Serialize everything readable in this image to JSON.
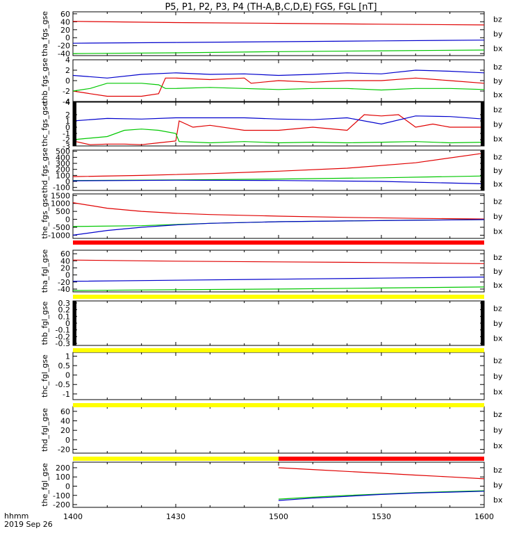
{
  "title": "P5, P1, P2, P3, P4 (TH-A,B,C,D,E) FGS, FGL [nT]",
  "time_axis": {
    "label_line1": "hhmm",
    "label_line2": "2019 Sep 26",
    "ticks": [
      "1400",
      "1430",
      "1500",
      "1530",
      "1600"
    ],
    "range_min": [
      0,
      120
    ]
  },
  "colors": {
    "bz": "#e00000",
    "by": "#00c800",
    "bx": "#0000cc",
    "yellow": "#ffff00",
    "red": "#ff0000",
    "black": "#000000"
  },
  "chart_data": [
    {
      "type": "line",
      "name": "tha_fgs_gse",
      "ylabel": "tha_fgs_gse",
      "ylim": [
        -45,
        65
      ],
      "yticks": [
        60,
        40,
        20,
        0,
        -20,
        -40
      ],
      "legend": [
        "bz",
        "by",
        "bx"
      ],
      "series": [
        {
          "name": "bz",
          "x": [
            0,
            30,
            60,
            90,
            120
          ],
          "y": [
            41,
            38,
            36,
            34,
            32
          ]
        },
        {
          "name": "by",
          "x": [
            0,
            30,
            60,
            90,
            120
          ],
          "y": [
            -40,
            -38,
            -35,
            -33,
            -31
          ]
        },
        {
          "name": "bx",
          "x": [
            0,
            30,
            60,
            90,
            120
          ],
          "y": [
            -14,
            -12,
            -10,
            -8,
            -6
          ]
        }
      ]
    },
    {
      "type": "line",
      "name": "thb_fgs_gse",
      "ylabel": "thb_fgs_gse",
      "ylim": [
        -4,
        4
      ],
      "yticks": [
        4,
        2,
        0,
        -2,
        -4
      ],
      "legend": [
        "bz",
        "by",
        "bx"
      ],
      "series": [
        {
          "name": "bz",
          "x": [
            0,
            5,
            10,
            15,
            20,
            25,
            27,
            30,
            40,
            50,
            52,
            60,
            70,
            80,
            90,
            100,
            110,
            120
          ],
          "y": [
            -2,
            -2.5,
            -3,
            -3,
            -3,
            -2.5,
            0.5,
            0.5,
            0.2,
            0.5,
            -0.5,
            0,
            -0.3,
            0,
            0,
            0.5,
            0,
            -0.5
          ]
        },
        {
          "name": "by",
          "x": [
            0,
            5,
            10,
            15,
            20,
            25,
            27,
            30,
            40,
            50,
            60,
            70,
            80,
            90,
            100,
            110,
            120
          ],
          "y": [
            -2,
            -1.5,
            -0.5,
            -0.5,
            -0.5,
            -0.8,
            -1.5,
            -1.5,
            -1.3,
            -1.5,
            -1.7,
            -1.5,
            -1.5,
            -1.8,
            -1.5,
            -1.5,
            -1.7
          ]
        },
        {
          "name": "bx",
          "x": [
            0,
            10,
            20,
            30,
            40,
            50,
            60,
            70,
            80,
            90,
            100,
            110,
            120
          ],
          "y": [
            1,
            0.5,
            1.2,
            1.5,
            1.2,
            1.3,
            1.0,
            1.2,
            1.5,
            1.3,
            2.0,
            1.8,
            1.5
          ]
        }
      ]
    },
    {
      "type": "line",
      "name": "thc_fgs_gse",
      "ylabel": "thc_fgs_gse",
      "ylim": [
        -3,
        4
      ],
      "yticks": [
        4,
        2,
        1,
        0,
        -1,
        -2,
        -3
      ],
      "legend": [
        "bz",
        "by",
        "bx"
      ],
      "series": [
        {
          "name": "bz",
          "x": [
            0,
            5,
            10,
            15,
            20,
            25,
            30,
            31,
            35,
            40,
            50,
            60,
            70,
            80,
            85,
            90,
            95,
            100,
            105,
            110,
            120
          ],
          "y": [
            -2.2,
            -2.8,
            -2.7,
            -2.7,
            -2.8,
            -2.5,
            -2.2,
            1,
            0,
            0.3,
            -0.5,
            -0.5,
            0,
            -0.5,
            2,
            1.8,
            2,
            0,
            0.5,
            0,
            0
          ]
        },
        {
          "name": "by",
          "x": [
            0,
            10,
            15,
            20,
            25,
            30,
            31,
            40,
            50,
            60,
            70,
            80,
            90,
            100,
            110,
            120
          ],
          "y": [
            -2,
            -1.5,
            -0.5,
            -0.3,
            -0.5,
            -1,
            -2.3,
            -2.5,
            -2.3,
            -2.5,
            -2.4,
            -2.5,
            -2.4,
            -2.3,
            -2.5,
            -2.4
          ]
        },
        {
          "name": "bx",
          "x": [
            0,
            10,
            20,
            30,
            40,
            50,
            60,
            70,
            80,
            90,
            100,
            110,
            120
          ],
          "y": [
            1,
            1.4,
            1.3,
            1.5,
            1.5,
            1.5,
            1.3,
            1.2,
            1.5,
            0.5,
            1.8,
            1.7,
            1.3
          ]
        }
      ]
    },
    {
      "type": "line",
      "name": "thd_fgs_gse",
      "ylabel": "thd_fgs_gse",
      "ylim": [
        -150,
        520
      ],
      "yticks": [
        500,
        400,
        300,
        200,
        100,
        0,
        -100
      ],
      "legend": [
        "bz",
        "by",
        "bx"
      ],
      "series": [
        {
          "name": "bz",
          "x": [
            0,
            20,
            40,
            60,
            80,
            100,
            120
          ],
          "y": [
            80,
            100,
            130,
            170,
            220,
            310,
            470
          ]
        },
        {
          "name": "by",
          "x": [
            0,
            30,
            60,
            90,
            120
          ],
          "y": [
            15,
            25,
            40,
            60,
            90
          ]
        },
        {
          "name": "bx",
          "x": [
            0,
            30,
            60,
            90,
            120
          ],
          "y": [
            10,
            20,
            15,
            0,
            -40
          ]
        }
      ]
    },
    {
      "type": "line",
      "name": "the_fgs_gse",
      "ylabel": "the_fgs_gse",
      "ylim": [
        -1200,
        1600
      ],
      "yticks": [
        1500,
        1000,
        500,
        0,
        -500,
        -1000
      ],
      "legend": [
        "bz",
        "by",
        "bx"
      ],
      "series": [
        {
          "name": "bz",
          "x": [
            0,
            10,
            20,
            30,
            40,
            60,
            80,
            100,
            120
          ],
          "y": [
            1050,
            700,
            500,
            380,
            300,
            200,
            120,
            60,
            20
          ]
        },
        {
          "name": "by",
          "x": [
            0,
            20,
            40,
            60,
            80,
            100,
            120
          ],
          "y": [
            -450,
            -400,
            -250,
            -150,
            -100,
            -50,
            -20
          ]
        },
        {
          "name": "bx",
          "x": [
            0,
            10,
            20,
            30,
            40,
            60,
            80,
            100,
            120
          ],
          "y": [
            -1000,
            -700,
            -500,
            -350,
            -250,
            -150,
            -100,
            -60,
            -20
          ]
        }
      ]
    },
    {
      "type": "line",
      "name": "tha_fgl_gse",
      "ylabel": "tha_fgl_gse",
      "ylim": [
        -48,
        70
      ],
      "yticks": [
        60,
        40,
        20,
        0,
        -20,
        -40
      ],
      "legend": [
        "bz",
        "by",
        "bx"
      ],
      "series": [
        {
          "name": "bz",
          "x": [
            0,
            30,
            60,
            90,
            120
          ],
          "y": [
            42,
            39,
            37,
            35,
            32
          ]
        },
        {
          "name": "by",
          "x": [
            0,
            30,
            60,
            90,
            120
          ],
          "y": [
            -44,
            -42,
            -40,
            -37,
            -34
          ]
        },
        {
          "name": "bx",
          "x": [
            0,
            30,
            60,
            90,
            120
          ],
          "y": [
            -18,
            -15,
            -12,
            -9,
            -6
          ]
        }
      ]
    },
    {
      "type": "line",
      "name": "thb_fgl_gse",
      "ylabel": "thb_fgl_gse",
      "ylim": [
        -0.33,
        0.33
      ],
      "yticks": [
        0.3,
        0.2,
        0.1,
        0.0,
        -0.1,
        -0.2,
        -0.3
      ],
      "legend": [
        "bz",
        "by",
        "bx"
      ],
      "series": []
    },
    {
      "type": "line",
      "name": "thc_fgl_gse",
      "ylabel": "thc_fgl_gse",
      "ylim": [
        -1.3,
        1.2
      ],
      "yticks": [
        1.0,
        0.5,
        0.0,
        -0.5,
        -1.0
      ],
      "legend": [
        "bz",
        "by",
        "bx"
      ],
      "series": []
    },
    {
      "type": "line",
      "name": "thd_fgl_gse",
      "ylabel": "thd_fgl_gse",
      "ylim": [
        -28,
        70
      ],
      "yticks": [
        60,
        40,
        20,
        0,
        -20
      ],
      "legend": [
        "bz",
        "by",
        "bx"
      ],
      "series": []
    },
    {
      "type": "line",
      "name": "the_fgl_gse",
      "ylabel": "the_fgl_gse",
      "ylim": [
        -230,
        260
      ],
      "yticks": [
        200,
        100,
        0,
        -100,
        -200
      ],
      "legend": [
        "bz",
        "by",
        "bx"
      ],
      "series": [
        {
          "name": "bz",
          "x": [
            60,
            70,
            80,
            90,
            100,
            110,
            120
          ],
          "y": [
            200,
            180,
            160,
            140,
            120,
            100,
            80
          ]
        },
        {
          "name": "by",
          "x": [
            60,
            70,
            80,
            90,
            100,
            110,
            120
          ],
          "y": [
            -140,
            -120,
            -100,
            -85,
            -70,
            -60,
            -50
          ]
        },
        {
          "name": "bx",
          "x": [
            60,
            70,
            80,
            90,
            100,
            110,
            120
          ],
          "y": [
            -155,
            -130,
            -110,
            -90,
            -75,
            -65,
            -55
          ]
        }
      ]
    }
  ],
  "status_bars": [
    {
      "after_panel": 4,
      "segments": [
        {
          "from": 0,
          "to": 120,
          "color": "red"
        }
      ]
    },
    {
      "after_panel": 5,
      "segments": [
        {
          "from": 0,
          "to": 120,
          "color": "yellow"
        }
      ]
    },
    {
      "after_panel": 6,
      "segments": [
        {
          "from": 0,
          "to": 120,
          "color": "yellow"
        }
      ]
    },
    {
      "after_panel": 7,
      "segments": [
        {
          "from": 0,
          "to": 120,
          "color": "yellow"
        }
      ]
    },
    {
      "after_panel": 8,
      "segments": [
        {
          "from": 0,
          "to": 60,
          "color": "yellow"
        },
        {
          "from": 60,
          "to": 120,
          "color": "red"
        }
      ]
    }
  ],
  "edge_marks": [
    {
      "panel": 2,
      "side": "left"
    },
    {
      "panel": 2,
      "side": "right"
    },
    {
      "panel": 3,
      "side": "right"
    },
    {
      "panel": 6,
      "side": "left"
    },
    {
      "panel": 6,
      "side": "right"
    }
  ]
}
